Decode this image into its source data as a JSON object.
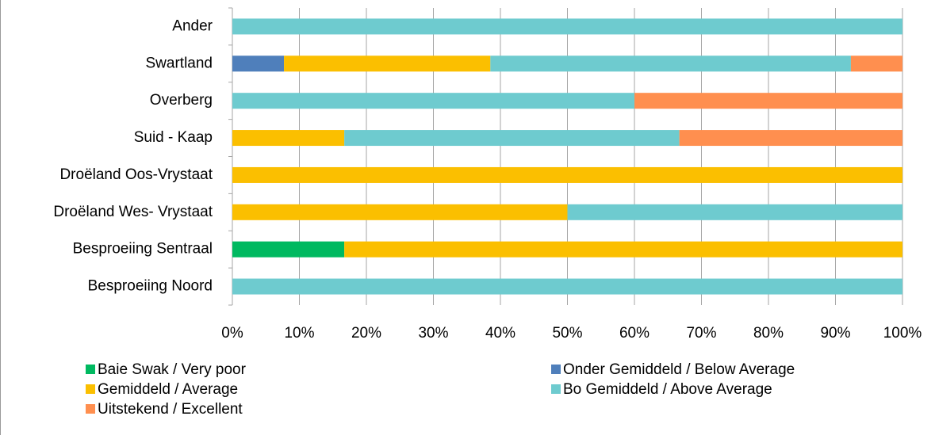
{
  "chart_data": {
    "type": "bar",
    "orientation": "horizontal",
    "stacked": true,
    "categories": [
      "Ander",
      "Swartland",
      "Overberg",
      "Suid - Kaap",
      "Droëland Oos-Vrystaat",
      "Droëland Wes- Vrystaat",
      "Besproeiing Sentraal",
      "Besproeiing Noord"
    ],
    "series": [
      {
        "name": "Baie Swak / Very poor",
        "color": "#00b960",
        "values": [
          0,
          0,
          0,
          0,
          0,
          0,
          16.7,
          0
        ]
      },
      {
        "name": "Onder Gemiddeld / Below Average",
        "color": "#4f7fbb",
        "values": [
          0,
          7.7,
          0,
          0,
          0,
          0,
          0,
          0
        ]
      },
      {
        "name": "Gemiddeld / Average",
        "color": "#fbbf00",
        "values": [
          0,
          30.8,
          0,
          16.7,
          100,
          50,
          83.3,
          0
        ]
      },
      {
        "name": "Bo Gemiddeld / Above Average",
        "color": "#6ecbcf",
        "values": [
          100,
          53.8,
          60,
          50,
          0,
          50,
          0,
          100
        ]
      },
      {
        "name": "Uitstekend / Excellent",
        "color": "#ff8f4f",
        "values": [
          0,
          7.7,
          40,
          33.3,
          0,
          0,
          0,
          0
        ]
      }
    ],
    "xlim": [
      0,
      100
    ],
    "xticks": [
      {
        "value": 0,
        "label": "0%"
      },
      {
        "value": 10,
        "label": "10%"
      },
      {
        "value": 20,
        "label": "20%"
      },
      {
        "value": 30,
        "label": "30%"
      },
      {
        "value": 40,
        "label": "40%"
      },
      {
        "value": 50,
        "label": "50%"
      },
      {
        "value": 60,
        "label": "60%"
      },
      {
        "value": 70,
        "label": "70%"
      },
      {
        "value": 80,
        "label": "80%"
      },
      {
        "value": 90,
        "label": "90%"
      },
      {
        "value": 100,
        "label": "100%"
      }
    ],
    "grid": true,
    "legend": "bottom"
  }
}
